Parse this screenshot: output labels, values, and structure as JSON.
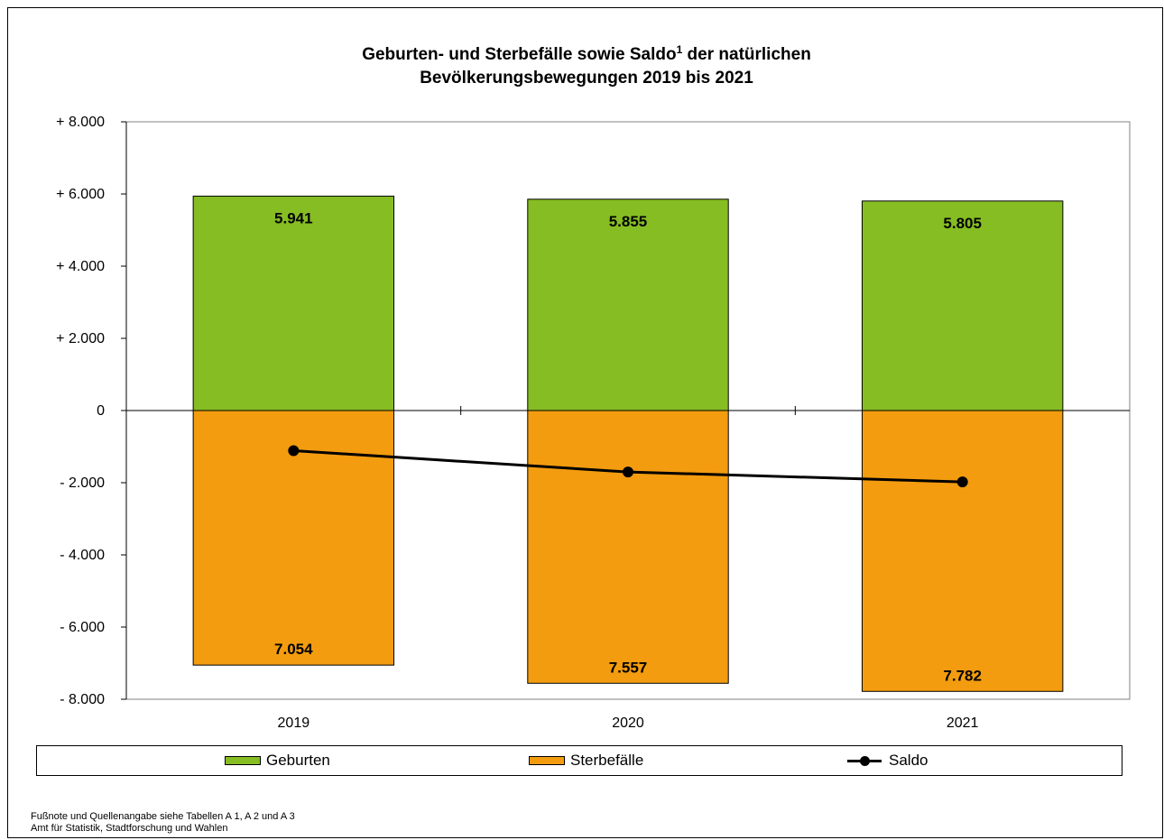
{
  "chart_data": {
    "type": "bar",
    "title_line1": "Geburten- und Sterbefälle sowie Saldo",
    "title_sup": "1",
    "title_line1_rest": " der natürlichen",
    "title_line2": "Bevölkerungsbewegungen 2019 bis 2021",
    "categories": [
      "2019",
      "2020",
      "2021"
    ],
    "series": [
      {
        "name": "Geburten",
        "values": [
          5941,
          5855,
          5805
        ],
        "labels": [
          "5.941",
          "5.855",
          "5.805"
        ],
        "color": "#86bd23"
      },
      {
        "name": "Sterbefälle",
        "values": [
          -7054,
          -7557,
          -7782
        ],
        "labels": [
          "7.054",
          "7.557",
          "7.782"
        ],
        "color": "#f39c0f"
      },
      {
        "name": "Saldo",
        "values": [
          -1113,
          -1702,
          -1977
        ],
        "type": "line",
        "color": "#000000"
      }
    ],
    "ylim": [
      -8000,
      8000
    ],
    "yticks": [
      {
        "value": 8000,
        "label": "+ 8.000"
      },
      {
        "value": 6000,
        "label": "+ 6.000"
      },
      {
        "value": 4000,
        "label": "+ 4.000"
      },
      {
        "value": 2000,
        "label": "+ 2.000"
      },
      {
        "value": 0,
        "label": "0"
      },
      {
        "value": -2000,
        "label": "- 2.000"
      },
      {
        "value": -4000,
        "label": "- 4.000"
      },
      {
        "value": -6000,
        "label": "- 6.000"
      },
      {
        "value": -8000,
        "label": "- 8.000"
      }
    ],
    "legend_position": "bottom",
    "grid": false
  },
  "footnotes": {
    "line1": "Fußnote und Quellenangabe siehe Tabellen A 1, A 2 und A 3",
    "line2": "Amt für Statistik, Stadtforschung und Wahlen"
  }
}
